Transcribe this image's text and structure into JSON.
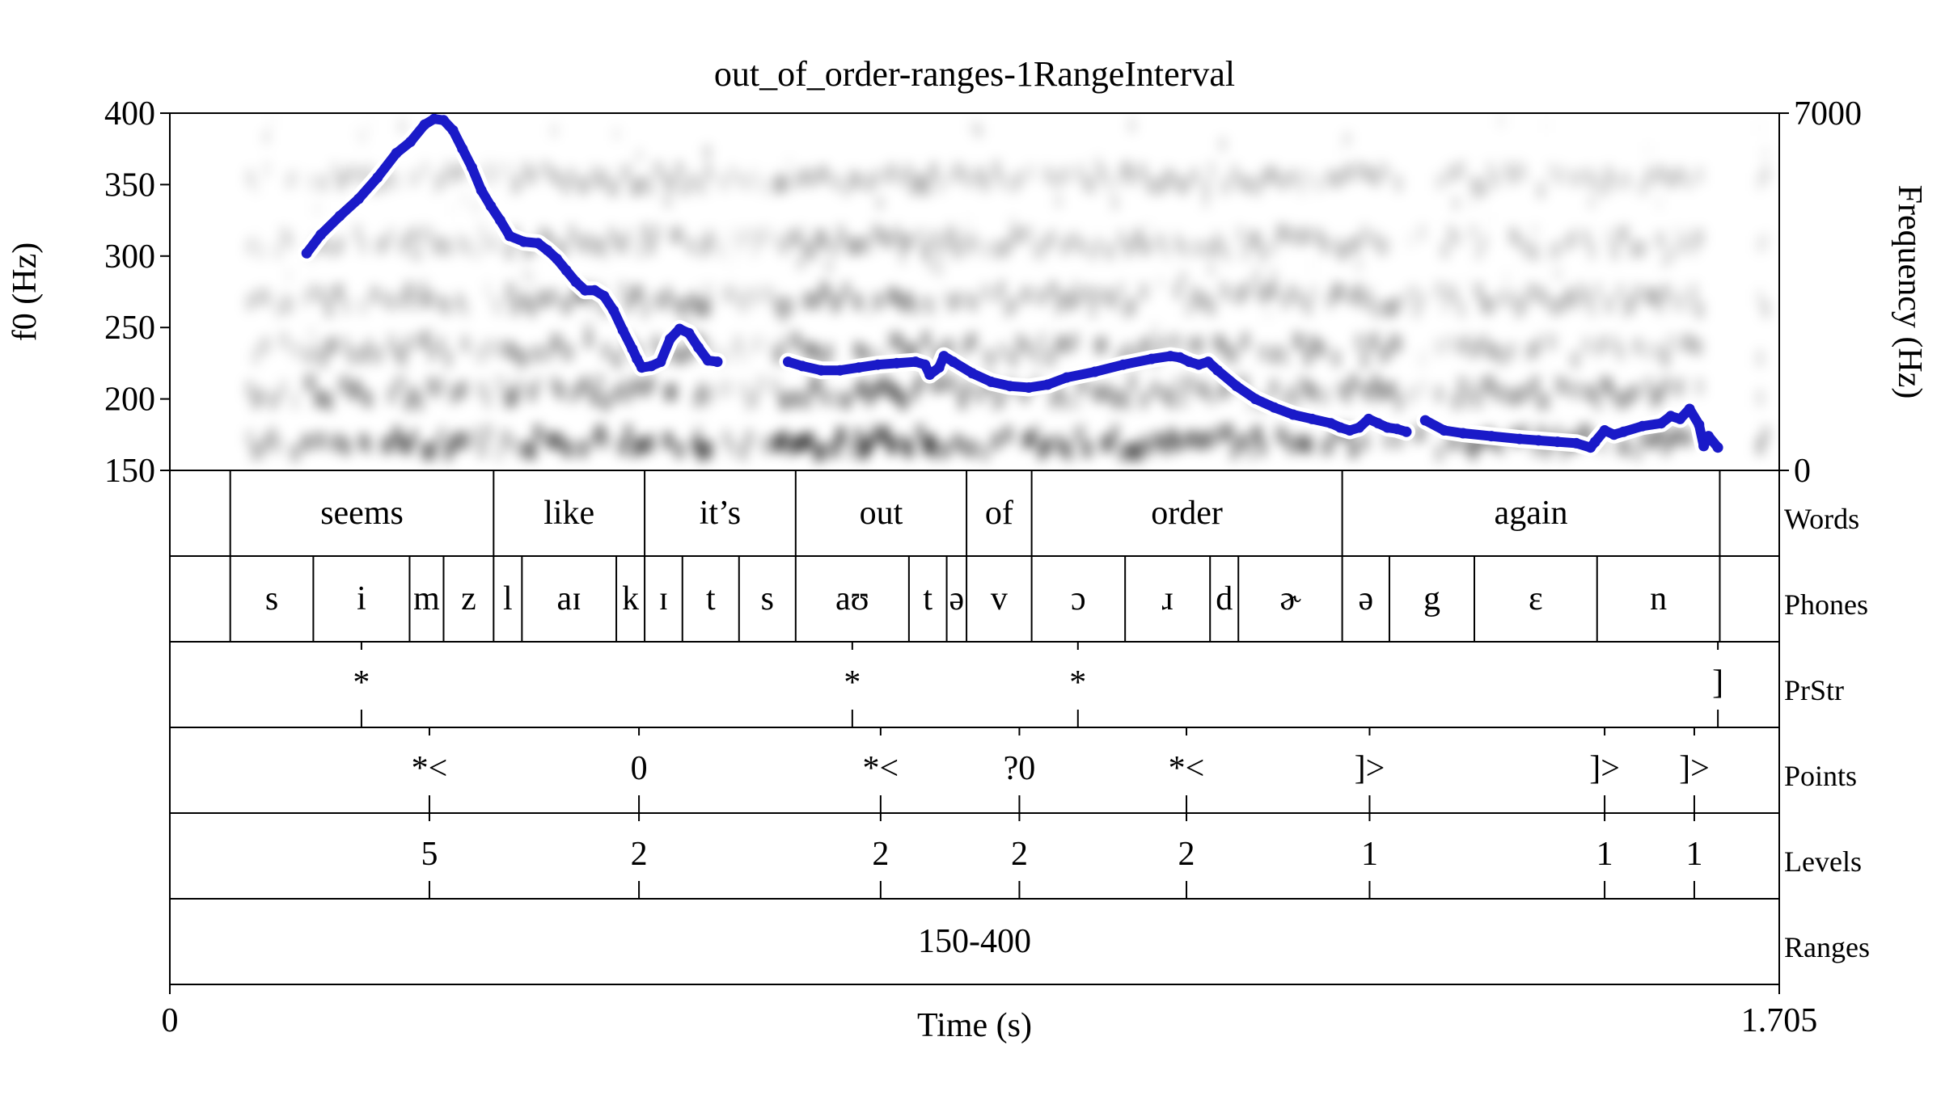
{
  "chart_data": {
    "type": "line",
    "title": "out_of_order-ranges-1RangeInterval",
    "xlabel": "Time (s)",
    "ylabel_left": "f0 (Hz)",
    "ylabel_right": "Frequency (Hz)",
    "x_range": [
      0,
      1.705
    ],
    "x_tick_labels": [
      "0",
      "1.705"
    ],
    "f0_range": [
      150,
      400
    ],
    "f0_tick_labels": [
      "150",
      "200",
      "250",
      "300",
      "350",
      "400"
    ],
    "spec_range": [
      0,
      7000
    ],
    "spec_tick_labels": [
      "0",
      "7000"
    ],
    "colors": {
      "pitch": "#1a1ac8",
      "pitch_halo": "#ffffff",
      "spectrogram": "#000000"
    },
    "series": [
      {
        "points": [
          [
            0.145,
            302
          ],
          [
            0.16,
            315
          ],
          [
            0.18,
            328
          ],
          [
            0.2,
            340
          ],
          [
            0.22,
            355
          ],
          [
            0.24,
            372
          ],
          [
            0.255,
            380
          ],
          [
            0.27,
            392
          ],
          [
            0.28,
            396
          ],
          [
            0.29,
            395
          ],
          [
            0.3,
            388
          ],
          [
            0.31,
            375
          ],
          [
            0.32,
            362
          ],
          [
            0.33,
            346
          ],
          [
            0.34,
            335
          ],
          [
            0.35,
            325
          ],
          [
            0.36,
            314
          ],
          [
            0.375,
            310
          ],
          [
            0.39,
            309
          ],
          [
            0.4,
            304
          ],
          [
            0.41,
            298
          ],
          [
            0.42,
            290
          ],
          [
            0.43,
            282
          ],
          [
            0.44,
            276
          ],
          [
            0.45,
            276
          ],
          [
            0.46,
            272
          ],
          [
            0.47,
            262
          ],
          [
            0.48,
            248
          ],
          [
            0.49,
            235
          ],
          [
            0.495,
            228
          ],
          [
            0.5,
            222
          ],
          [
            0.51,
            223
          ],
          [
            0.52,
            226
          ],
          [
            0.53,
            242
          ],
          [
            0.54,
            249
          ],
          [
            0.55,
            246
          ],
          [
            0.56,
            236
          ],
          [
            0.57,
            227
          ],
          [
            0.58,
            226
          ],
          null,
          [
            0.655,
            226
          ],
          [
            0.67,
            223
          ],
          [
            0.69,
            220
          ],
          [
            0.71,
            220
          ],
          [
            0.73,
            222
          ],
          [
            0.75,
            224
          ],
          [
            0.77,
            225
          ],
          [
            0.79,
            226
          ],
          [
            0.8,
            224
          ],
          [
            0.805,
            217
          ],
          [
            0.815,
            222
          ],
          [
            0.82,
            230
          ],
          [
            0.83,
            226
          ],
          [
            0.85,
            218
          ],
          [
            0.87,
            212
          ],
          [
            0.89,
            209
          ],
          [
            0.91,
            208
          ],
          [
            0.93,
            210
          ],
          [
            0.95,
            215
          ],
          [
            0.98,
            219
          ],
          [
            1.01,
            224
          ],
          [
            1.04,
            228
          ],
          [
            1.06,
            230
          ],
          [
            1.07,
            229
          ],
          [
            1.08,
            226
          ],
          [
            1.09,
            224
          ],
          [
            1.1,
            226
          ],
          [
            1.11,
            220
          ],
          [
            1.13,
            209
          ],
          [
            1.15,
            200
          ],
          [
            1.17,
            194
          ],
          [
            1.19,
            189
          ],
          [
            1.21,
            186
          ],
          [
            1.23,
            183
          ],
          [
            1.24,
            180
          ],
          [
            1.25,
            178
          ],
          [
            1.26,
            180
          ],
          [
            1.27,
            186
          ],
          [
            1.28,
            183
          ],
          [
            1.29,
            180
          ],
          [
            1.3,
            179
          ],
          [
            1.31,
            177
          ],
          null,
          [
            1.33,
            185
          ],
          [
            1.35,
            178
          ],
          [
            1.37,
            176
          ],
          [
            1.4,
            174
          ],
          [
            1.43,
            172
          ],
          [
            1.45,
            171
          ],
          [
            1.47,
            170
          ],
          [
            1.49,
            169
          ],
          [
            1.505,
            166
          ],
          [
            1.51,
            170
          ],
          [
            1.52,
            178
          ],
          [
            1.53,
            175
          ],
          [
            1.54,
            177
          ],
          [
            1.56,
            181
          ],
          [
            1.58,
            183
          ],
          [
            1.59,
            188
          ],
          [
            1.6,
            186
          ],
          [
            1.61,
            193
          ],
          [
            1.62,
            182
          ],
          [
            1.625,
            167
          ],
          [
            1.63,
            174
          ],
          [
            1.64,
            166
          ]
        ]
      }
    ]
  },
  "tiers": [
    {
      "name": "Words",
      "kind": "interval",
      "boundaries": [
        0.064,
        0.343,
        0.503,
        0.663,
        0.844,
        0.913,
        1.242,
        1.642
      ],
      "labels": [
        {
          "x": 0.2035,
          "text": "seems"
        },
        {
          "x": 0.423,
          "text": "like"
        },
        {
          "x": 0.583,
          "text": "it’s"
        },
        {
          "x": 0.7535,
          "text": "out"
        },
        {
          "x": 0.8785,
          "text": "of"
        },
        {
          "x": 1.0775,
          "text": "order"
        },
        {
          "x": 1.442,
          "text": "again"
        }
      ]
    },
    {
      "name": "Phones",
      "kind": "interval",
      "boundaries": [
        0.064,
        0.152,
        0.254,
        0.29,
        0.343,
        0.373,
        0.473,
        0.503,
        0.543,
        0.603,
        0.663,
        0.783,
        0.823,
        0.844,
        0.913,
        1.012,
        1.102,
        1.132,
        1.242,
        1.292,
        1.382,
        1.512,
        1.642
      ],
      "labels": [
        {
          "x": 0.108,
          "text": "s"
        },
        {
          "x": 0.203,
          "text": "i"
        },
        {
          "x": 0.272,
          "text": "m"
        },
        {
          "x": 0.3165,
          "text": "z"
        },
        {
          "x": 0.358,
          "text": "l"
        },
        {
          "x": 0.423,
          "text": "aɪ"
        },
        {
          "x": 0.488,
          "text": "k"
        },
        {
          "x": 0.523,
          "text": "ɪ"
        },
        {
          "x": 0.573,
          "text": "t"
        },
        {
          "x": 0.633,
          "text": "s"
        },
        {
          "x": 0.723,
          "text": "aʊ"
        },
        {
          "x": 0.803,
          "text": "t"
        },
        {
          "x": 0.8335,
          "text": "ə"
        },
        {
          "x": 0.8785,
          "text": "v"
        },
        {
          "x": 0.9625,
          "text": "ɔ"
        },
        {
          "x": 1.057,
          "text": "ɹ"
        },
        {
          "x": 1.117,
          "text": "d"
        },
        {
          "x": 1.187,
          "text": "ɚ"
        },
        {
          "x": 1.267,
          "text": "ə"
        },
        {
          "x": 1.337,
          "text": "g"
        },
        {
          "x": 1.447,
          "text": "ɛ"
        },
        {
          "x": 1.577,
          "text": "n"
        }
      ]
    },
    {
      "name": "PrStr",
      "kind": "point",
      "points": [
        {
          "x": 0.203,
          "text": "*"
        },
        {
          "x": 0.723,
          "text": "*"
        },
        {
          "x": 0.962,
          "text": "*"
        },
        {
          "x": 1.64,
          "text": "]"
        }
      ]
    },
    {
      "name": "Points",
      "kind": "point",
      "points": [
        {
          "x": 0.275,
          "text": "*<"
        },
        {
          "x": 0.497,
          "text": "0"
        },
        {
          "x": 0.753,
          "text": "*<"
        },
        {
          "x": 0.9,
          "text": "?0"
        },
        {
          "x": 1.077,
          "text": "*<"
        },
        {
          "x": 1.271,
          "text": "]>"
        },
        {
          "x": 1.52,
          "text": "]>"
        },
        {
          "x": 1.615,
          "text": "]>"
        }
      ]
    },
    {
      "name": "Levels",
      "kind": "point",
      "points": [
        {
          "x": 0.275,
          "text": "5"
        },
        {
          "x": 0.497,
          "text": "2"
        },
        {
          "x": 0.753,
          "text": "2"
        },
        {
          "x": 0.9,
          "text": "2"
        },
        {
          "x": 1.077,
          "text": "2"
        },
        {
          "x": 1.271,
          "text": "1"
        },
        {
          "x": 1.52,
          "text": "1"
        },
        {
          "x": 1.615,
          "text": "1"
        }
      ]
    },
    {
      "name": "Ranges",
      "kind": "interval",
      "boundaries": [],
      "labels": [
        {
          "x": 0.8525,
          "text": "150-400"
        }
      ]
    }
  ]
}
